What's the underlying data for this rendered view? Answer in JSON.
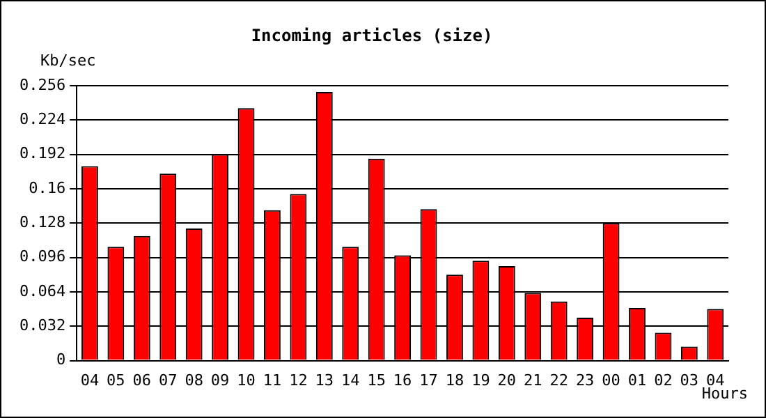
{
  "chart_data": {
    "type": "bar",
    "title": "Incoming articles (size)",
    "ylabel": "Kb/sec",
    "xlabel": "Hours",
    "categories": [
      "04",
      "05",
      "06",
      "07",
      "08",
      "09",
      "10",
      "11",
      "12",
      "13",
      "14",
      "15",
      "16",
      "17",
      "18",
      "19",
      "20",
      "21",
      "22",
      "23",
      "00",
      "01",
      "02",
      "03",
      "04"
    ],
    "values": [
      0.181,
      0.106,
      0.116,
      0.174,
      0.123,
      0.192,
      0.235,
      0.14,
      0.155,
      0.25,
      0.106,
      0.188,
      0.098,
      0.141,
      0.08,
      0.093,
      0.088,
      0.063,
      0.055,
      0.04,
      0.128,
      0.049,
      0.026,
      0.013,
      0.048
    ],
    "color": "#ff0000",
    "ylim": [
      0,
      0.256
    ],
    "yticks": [
      0,
      0.032,
      0.064,
      0.096,
      0.128,
      0.16,
      0.192,
      0.224,
      0.256
    ],
    "grid": "y",
    "legend": false
  }
}
